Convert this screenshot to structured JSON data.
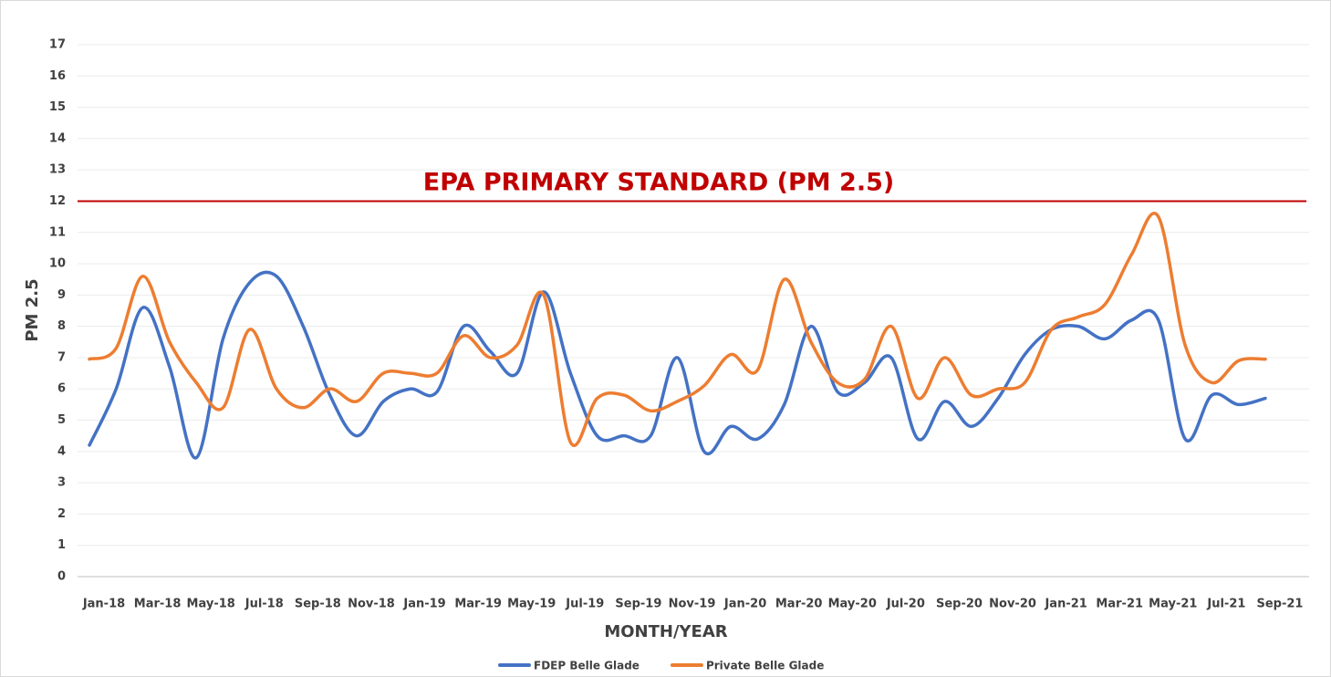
{
  "chart_data": {
    "type": "line",
    "x_label": "MONTH/YEAR",
    "y_label": "PM 2.5",
    "categories": [
      "Jan-18",
      null,
      "Mar-18",
      null,
      "May-18",
      null,
      "Jul-18",
      null,
      "Sep-18",
      null,
      "Nov-18",
      null,
      "Jan-19",
      null,
      "Mar-19",
      null,
      "May-19",
      null,
      "Jul-19",
      null,
      "Sep-19",
      null,
      "Nov-19",
      null,
      "Jan-20",
      null,
      "Mar-20",
      null,
      "May-20",
      null,
      "Jul-20",
      null,
      "Sep-20",
      null,
      "Nov-20",
      null,
      "Jan-21",
      null,
      "Mar-21",
      null,
      "May-21",
      null,
      "Jul-21",
      null,
      "Sep-21"
    ],
    "series": [
      {
        "name": "FDEP Belle Glade",
        "color": "#4472c4",
        "values": [
          4.2,
          6.0,
          8.6,
          6.7,
          3.8,
          7.6,
          9.4,
          9.6,
          8.0,
          5.8,
          4.5,
          5.6,
          6.0,
          5.9,
          8.0,
          7.2,
          6.5,
          9.1,
          6.5,
          4.5,
          4.5,
          4.5,
          7.0,
          4.0,
          4.8,
          4.4,
          5.5,
          8.0,
          5.9,
          6.2,
          7.0,
          4.4,
          5.6,
          4.8,
          5.7,
          7.1,
          7.9,
          8.0,
          7.6,
          8.2,
          8.2,
          4.4,
          5.8,
          5.5,
          5.7
        ]
      },
      {
        "name": "Private Belle Glade",
        "color": "#ed7d31",
        "values": [
          6.95,
          7.3,
          9.6,
          7.5,
          6.2,
          5.4,
          7.9,
          6.0,
          5.4,
          6.0,
          5.6,
          6.5,
          6.5,
          6.5,
          7.7,
          7.0,
          7.4,
          9.0,
          4.3,
          5.7,
          5.8,
          5.3,
          5.6,
          6.1,
          7.1,
          6.6,
          9.5,
          7.5,
          6.2,
          6.3,
          8.0,
          5.7,
          7.0,
          5.8,
          6.0,
          6.2,
          7.9,
          8.3,
          8.7,
          10.3,
          11.5,
          7.4,
          6.2,
          6.9,
          6.95
        ]
      }
    ],
    "reference_line": {
      "value": 12,
      "label": "EPA PRIMARY STANDARD (PM 2.5)",
      "color": "#c00000"
    },
    "ylim": [
      0,
      17
    ],
    "yticks": [
      0,
      1,
      2,
      3,
      4,
      5,
      6,
      7,
      8,
      9,
      10,
      11,
      12,
      13,
      14,
      15,
      16,
      17
    ],
    "grid": true,
    "legend": "bottom"
  }
}
